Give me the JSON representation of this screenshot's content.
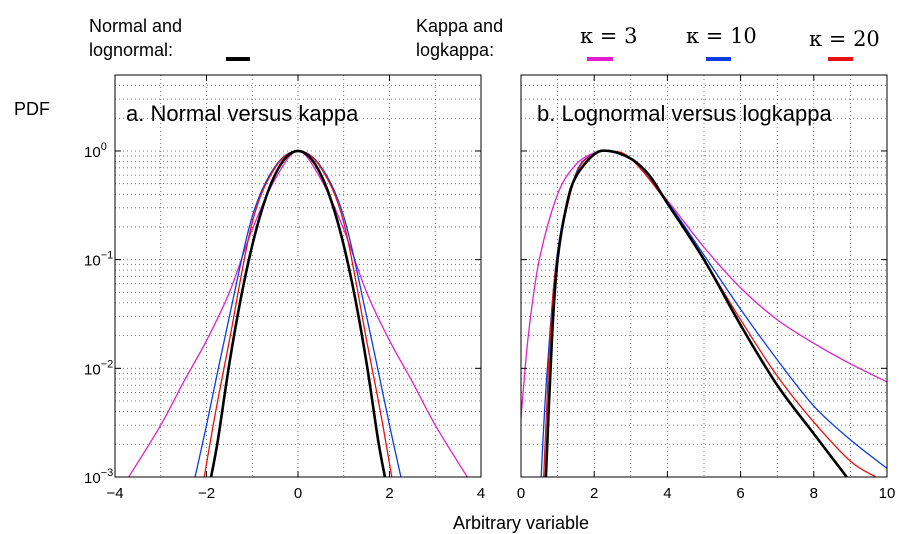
{
  "legend": {
    "group_normal_line1": "Normal and",
    "group_normal_line2": "lognormal:",
    "group_kappa_line1": "Kappa and",
    "group_kappa_line2": "logkappa:",
    "entries": [
      {
        "label": "κ = 3",
        "color": "#e020d0"
      },
      {
        "label": "κ = 10",
        "color": "#0a3ce8"
      },
      {
        "label": "κ = 20",
        "color": "#e81010"
      }
    ],
    "normal_color": "#000000"
  },
  "ylabel": "PDF",
  "xlabel": "Arbitrary variable",
  "chart_data": [
    {
      "type": "line",
      "title": "a. Normal versus kappa",
      "yscale": "log",
      "xlim": [
        -4,
        4
      ],
      "ylim": [
        0.001,
        5
      ],
      "xticks": [
        -4,
        -2,
        0,
        2,
        4
      ],
      "xtick_labels": [
        "−4",
        "−2",
        "0",
        "2",
        "4"
      ],
      "ytick_labels": [
        {
          "base": "10",
          "exp": "0",
          "value": 1
        },
        {
          "base": "10",
          "exp": "−1",
          "value": 0.1
        },
        {
          "base": "10",
          "exp": "−2",
          "value": 0.01
        },
        {
          "base": "10",
          "exp": "−3",
          "value": 0.001
        }
      ],
      "grid": true,
      "series": [
        {
          "color": "#e020d0",
          "width": 1.3,
          "x": [
            -3.7,
            -3.0,
            -2.5,
            -2.0,
            -1.5,
            -1.0,
            -0.5,
            0.0,
            0.5,
            1.0,
            1.5,
            2.0,
            2.5,
            3.0,
            3.7
          ],
          "y": [
            0.001,
            0.003,
            0.0075,
            0.018,
            0.05,
            0.19,
            0.55,
            1.0,
            0.55,
            0.19,
            0.05,
            0.018,
            0.0075,
            0.003,
            0.001
          ]
        },
        {
          "color": "#0a3ce8",
          "width": 1.3,
          "x": [
            -2.25,
            -2.0,
            -1.5,
            -1.0,
            -0.5,
            0.0,
            0.5,
            1.0,
            1.5,
            2.0,
            2.25
          ],
          "y": [
            0.001,
            0.003,
            0.03,
            0.25,
            0.72,
            1.0,
            0.72,
            0.25,
            0.03,
            0.003,
            0.001
          ]
        },
        {
          "color": "#e81010",
          "width": 1.3,
          "x": [
            -2.05,
            -1.8,
            -1.5,
            -1.0,
            -0.5,
            0.0,
            0.5,
            1.0,
            1.5,
            1.8,
            2.05
          ],
          "y": [
            0.001,
            0.004,
            0.018,
            0.22,
            0.7,
            1.0,
            0.7,
            0.22,
            0.018,
            0.004,
            0.001
          ]
        },
        {
          "color": "#000000",
          "width": 2.6,
          "x": [
            -1.9,
            -1.75,
            -1.5,
            -1.25,
            -1.0,
            -0.75,
            -0.5,
            -0.25,
            0.0,
            0.25,
            0.5,
            0.75,
            1.0,
            1.25,
            1.5,
            1.75,
            1.9
          ],
          "y": [
            0.001,
            0.0022,
            0.0111,
            0.0439,
            0.1353,
            0.3247,
            0.6065,
            0.8825,
            1.0,
            0.8825,
            0.6065,
            0.3247,
            0.1353,
            0.0439,
            0.0111,
            0.0022,
            0.001
          ]
        }
      ]
    },
    {
      "type": "line",
      "title": "b. Lognormal versus logkappa",
      "yscale": "log",
      "xlim": [
        0,
        10
      ],
      "ylim": [
        0.001,
        5
      ],
      "xticks": [
        0,
        2,
        4,
        6,
        8,
        10
      ],
      "xtick_labels": [
        "0",
        "2",
        "4",
        "6",
        "8",
        "10"
      ],
      "grid": true,
      "series": [
        {
          "color": "#e020d0",
          "width": 1.3,
          "x": [
            0.0,
            0.2,
            0.5,
            1.0,
            1.5,
            2.0,
            2.4,
            3.0,
            4.0,
            5.0,
            6.0,
            7.0,
            8.0,
            9.0,
            10.0
          ],
          "y": [
            0.0035,
            0.02,
            0.1,
            0.4,
            0.75,
            0.96,
            1.0,
            0.85,
            0.35,
            0.13,
            0.055,
            0.028,
            0.017,
            0.011,
            0.0075
          ]
        },
        {
          "color": "#0a3ce8",
          "width": 1.3,
          "x": [
            0.55,
            0.7,
            1.0,
            1.5,
            2.0,
            2.4,
            3.0,
            4.0,
            5.0,
            6.0,
            7.0,
            8.0,
            9.0,
            10.0
          ],
          "y": [
            0.001,
            0.008,
            0.12,
            0.62,
            0.94,
            1.0,
            0.85,
            0.34,
            0.11,
            0.035,
            0.012,
            0.0045,
            0.0022,
            0.0012
          ]
        },
        {
          "color": "#e81010",
          "width": 1.3,
          "x": [
            0.62,
            0.8,
            1.0,
            1.5,
            2.0,
            2.4,
            3.0,
            4.0,
            5.0,
            6.0,
            7.0,
            8.0,
            9.0,
            9.7
          ],
          "y": [
            0.001,
            0.02,
            0.11,
            0.6,
            0.94,
            1.0,
            0.85,
            0.33,
            0.1,
            0.028,
            0.0085,
            0.0032,
            0.0014,
            0.001
          ]
        },
        {
          "color": "#000000",
          "width": 2.6,
          "x": [
            0.68,
            0.85,
            1.0,
            1.25,
            1.5,
            2.0,
            2.4,
            3.0,
            3.5,
            4.0,
            5.0,
            6.0,
            7.0,
            8.0,
            8.9
          ],
          "y": [
            0.001,
            0.02,
            0.1,
            0.32,
            0.58,
            0.93,
            1.0,
            0.85,
            0.6,
            0.33,
            0.1,
            0.025,
            0.007,
            0.0025,
            0.001
          ]
        }
      ]
    }
  ]
}
